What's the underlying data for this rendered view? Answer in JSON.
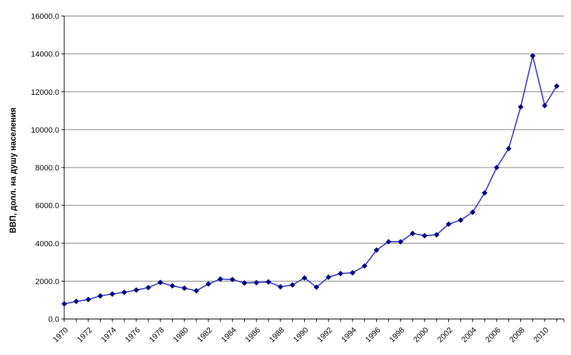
{
  "chart_data": {
    "type": "line",
    "title": "",
    "xlabel": "",
    "ylabel": "ВВП, долл. на душу населения",
    "ylim": [
      0,
      16000
    ],
    "ytick_step": 2000,
    "ytick_labels": [
      "0.0",
      "2000.0",
      "4000.0",
      "6000.0",
      "8000.0",
      "10000.0",
      "12000.0",
      "14000.0",
      "16000.0"
    ],
    "xtick_labels_shown": [
      "1970",
      "1972",
      "1974",
      "1976",
      "1978",
      "1980",
      "1982",
      "1984",
      "1986",
      "1988",
      "1990",
      "1992",
      "1994",
      "1996",
      "1998",
      "2000",
      "2002",
      "2004",
      "2006",
      "2008",
      "2010"
    ],
    "x_label_every": 2,
    "grid": "horizontal",
    "legend": "none",
    "marker": "diamond",
    "years": [
      1970,
      1971,
      1972,
      1973,
      1974,
      1975,
      1976,
      1977,
      1978,
      1979,
      1980,
      1981,
      1982,
      1983,
      1984,
      1985,
      1986,
      1987,
      1988,
      1989,
      1990,
      1991,
      1992,
      1993,
      1994,
      1995,
      1996,
      1997,
      1998,
      1999,
      2000,
      2001,
      2002,
      2003,
      2004,
      2005,
      2006,
      2007,
      2008,
      2009,
      2010,
      2011
    ],
    "values": [
      800,
      930,
      1030,
      1220,
      1320,
      1410,
      1530,
      1660,
      1930,
      1750,
      1630,
      1490,
      1850,
      2110,
      2085,
      1900,
      1920,
      1960,
      1700,
      1800,
      2170,
      1680,
      2210,
      2400,
      2440,
      2800,
      3640,
      4080,
      4080,
      4520,
      4400,
      4450,
      5010,
      5220,
      5640,
      6660,
      8000,
      9000,
      11200,
      13900,
      11270,
      12300
    ],
    "colors": {
      "line": "#3b3bc4",
      "marker": "#00007e",
      "gridline": "#808080",
      "axis": "#000000",
      "background": "#ffffff"
    }
  }
}
